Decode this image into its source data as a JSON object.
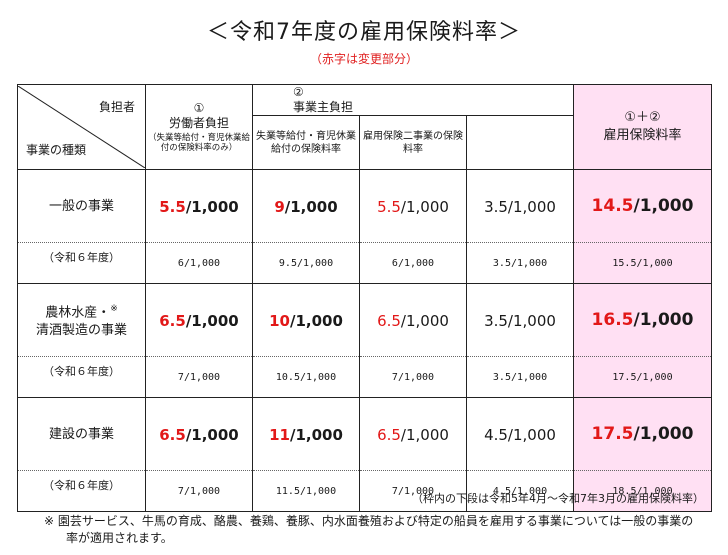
{
  "title": "＜令和7年度の雇用保険料率＞",
  "subtitle": "（赤字は変更部分）",
  "header": {
    "corner_payer": "負担者",
    "corner_business": "事業の種類",
    "worker_num": "①",
    "worker_label": "労働者負担",
    "worker_note": "（失業等給付・育児休業給付の保険料率のみ）",
    "employer_num": "②",
    "employer_label": "事業主負担",
    "employer_sub1": "失業等給付・育児休業給付の保険料率",
    "employer_sub2": "雇用保険二事業の保険料率",
    "total_num": "①＋②",
    "total_label": "雇用保険料率"
  },
  "rows": [
    {
      "label": "一般の事業",
      "worker_red": "5.5",
      "worker_black": "/1,000",
      "employer_red": "9",
      "employer_black": "/1,000",
      "sub1_red": "5.5",
      "sub1_black": "/1,000",
      "sub2": "3.5/1,000",
      "total_red": "14.5",
      "total_black": "/1,000",
      "prev_label": "（令和６年度）",
      "prev_worker": "6/1,000",
      "prev_employer": "9.5/1,000",
      "prev_sub1": "6/1,000",
      "prev_sub2": "3.5/1,000",
      "prev_total": "15.5/1,000"
    },
    {
      "label_line1": "農林水産・",
      "label_mark": "※",
      "label_line2": "清酒製造の事業",
      "worker_red": "6.5",
      "worker_black": "/1,000",
      "employer_red": "10",
      "employer_black": "/1,000",
      "sub1_red": "6.5",
      "sub1_black": "/1,000",
      "sub2": "3.5/1,000",
      "total_red": "16.5",
      "total_black": "/1,000",
      "prev_label": "（令和６年度）",
      "prev_worker": "7/1,000",
      "prev_employer": "10.5/1,000",
      "prev_sub1": "7/1,000",
      "prev_sub2": "3.5/1,000",
      "prev_total": "17.5/1,000"
    },
    {
      "label": "建設の事業",
      "worker_red": "6.5",
      "worker_black": "/1,000",
      "employer_red": "11",
      "employer_black": "/1,000",
      "sub1_red": "6.5",
      "sub1_black": "/1,000",
      "sub2": "4.5/1,000",
      "total_red": "17.5",
      "total_black": "/1,000",
      "prev_label": "（令和６年度）",
      "prev_worker": "7/1,000",
      "prev_employer": "11.5/1,000",
      "prev_sub1": "7/1,000",
      "prev_sub2": "4.5/1,000",
      "prev_total": "18.5/1,000"
    }
  ],
  "note_right": "（枠内の下段は令和5年4月～令和7年3月の雇用保険料率）",
  "footnote": "※ 園芸サービス、牛馬の育成、酪農、養鶏、養豚、内水面養殖および特定の船員を雇用する事業については一般の事業の率が適用されます。",
  "colors": {
    "red": "#e21818",
    "highlight": "#ffe0f3"
  }
}
